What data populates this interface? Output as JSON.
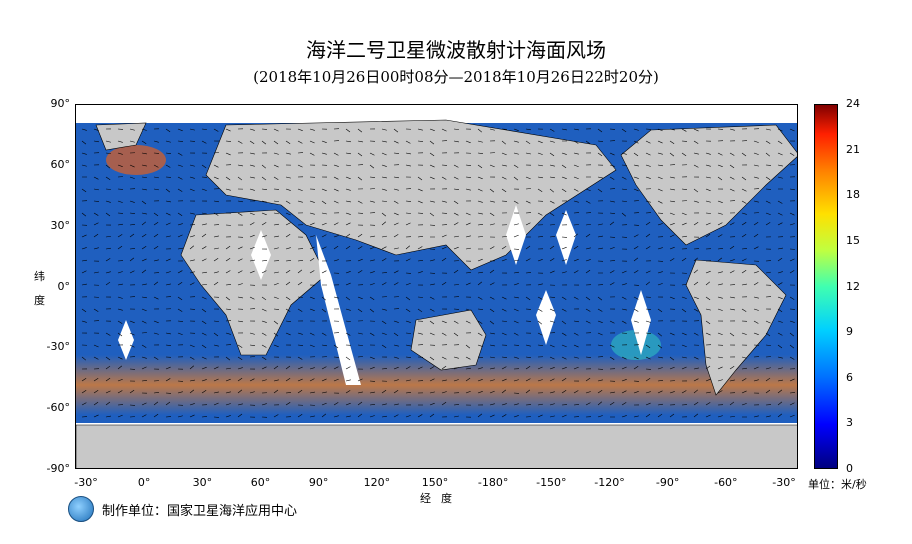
{
  "title": "海洋二号卫星微波散射计海面风场",
  "subtitle": "(2018年10月26日00时08分—2018年10月26日22时20分)",
  "lat_axis_title": [
    "纬",
    "度"
  ],
  "lon_axis_title": "经度",
  "lat_ticks": [
    "90°",
    "60°",
    "30°",
    "0°",
    "-30°",
    "-60°",
    "-90°"
  ],
  "lon_ticks": [
    "-30°",
    "0°",
    "30°",
    "60°",
    "90°",
    "120°",
    "150°",
    "-180°",
    "-150°",
    "-120°",
    "-90°",
    "-60°",
    "-30°"
  ],
  "colorbar": {
    "ticks": [
      "24",
      "21",
      "18",
      "15",
      "12",
      "9",
      "6",
      "3",
      "0"
    ],
    "unit": "单位：米/秒",
    "range": [
      0,
      24
    ]
  },
  "footer": "制作单位：国家卫星海洋应用中心",
  "colors": {
    "ocean_low": "#1f5fbf",
    "land": "#c8c8c8",
    "gap": "#ffffff"
  }
}
